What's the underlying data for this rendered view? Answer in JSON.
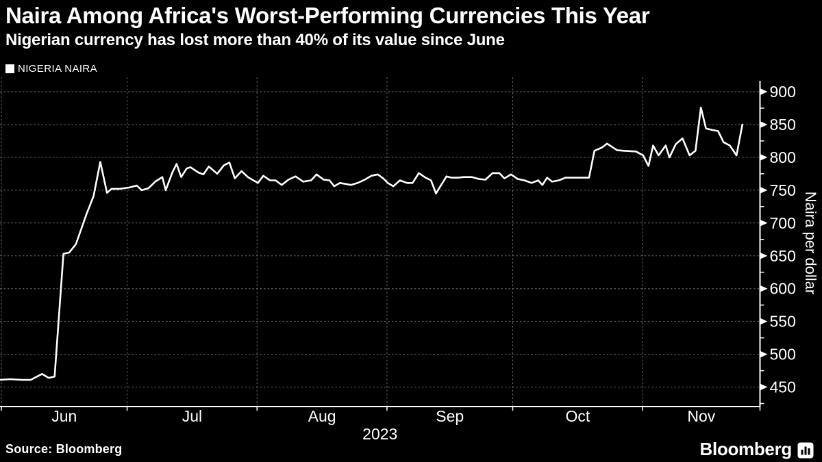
{
  "header": {
    "title": "Naira Among Africa's Worst-Performing Currencies This Year",
    "subtitle": "Nigerian currency has lost more than 40% of its value since June"
  },
  "legend": {
    "label": "NIGERIA NAIRA",
    "marker_color": "#ffffff"
  },
  "footer": {
    "source": "Source: Bloomberg",
    "brand": "Bloomberg"
  },
  "colors": {
    "background": "#000000",
    "line": "#ffffff",
    "grid": "#6e6e6e",
    "axis": "#ffffff",
    "text": "#ffffff"
  },
  "chart_data": {
    "type": "line",
    "title": "Naira Among Africa's Worst-Performing Currencies This Year",
    "subtitle": "Nigerian currency has lost more than 40% of its value since June",
    "legend_position": "top-left",
    "grid": "dashed",
    "x": {
      "unit": "days since Jun 1, 2023",
      "month_labels": [
        "Jun",
        "Jul",
        "Aug",
        "Sep",
        "Oct",
        "Nov"
      ],
      "month_start_days": [
        0,
        30,
        61,
        92,
        122,
        153
      ],
      "axis_end_day": 181,
      "year_label": "2023"
    },
    "y": {
      "label": "Naira per dollar",
      "side": "right",
      "ticks": [
        450,
        500,
        550,
        600,
        650,
        700,
        750,
        800,
        850,
        900
      ],
      "minor_ticks": [
        425,
        475,
        525,
        575,
        625,
        675,
        725,
        775,
        825,
        875
      ],
      "ylim": [
        417,
        920
      ]
    },
    "series": [
      {
        "name": "NIGERIA NAIRA",
        "unit": "naira per US dollar",
        "points": [
          [
            -0.4,
            461
          ],
          [
            2,
            462
          ],
          [
            5,
            461
          ],
          [
            7,
            461
          ],
          [
            8.5,
            466
          ],
          [
            9.7,
            470
          ],
          [
            11.3,
            464
          ],
          [
            12.7,
            466
          ],
          [
            14.8,
            653
          ],
          [
            16.2,
            655
          ],
          [
            17.8,
            668
          ],
          [
            20.4,
            715
          ],
          [
            22,
            741
          ],
          [
            23.6,
            793
          ],
          [
            25.2,
            746
          ],
          [
            26.3,
            752
          ],
          [
            28.2,
            752
          ],
          [
            30.5,
            754
          ],
          [
            32.3,
            757
          ],
          [
            33.5,
            750
          ],
          [
            35.1,
            753
          ],
          [
            36.7,
            763
          ],
          [
            38.4,
            770
          ],
          [
            39.2,
            750
          ],
          [
            40.8,
            777
          ],
          [
            41.8,
            790
          ],
          [
            42.9,
            770
          ],
          [
            44.2,
            783
          ],
          [
            45.1,
            785
          ],
          [
            47,
            777
          ],
          [
            48.2,
            774
          ],
          [
            49.5,
            786
          ],
          [
            51.5,
            775
          ],
          [
            53.1,
            788
          ],
          [
            54.4,
            792
          ],
          [
            55.7,
            768
          ],
          [
            57.3,
            779
          ],
          [
            58.8,
            770
          ],
          [
            61.2,
            761
          ],
          [
            62.5,
            772
          ],
          [
            64.1,
            765
          ],
          [
            65.4,
            765
          ],
          [
            66.9,
            758
          ],
          [
            68.5,
            766
          ],
          [
            70.2,
            771
          ],
          [
            72,
            763
          ],
          [
            73.9,
            765
          ],
          [
            75.2,
            774
          ],
          [
            76.9,
            766
          ],
          [
            78.3,
            765
          ],
          [
            79.4,
            756
          ],
          [
            80.8,
            761
          ],
          [
            83.4,
            758
          ],
          [
            85,
            761
          ],
          [
            86.7,
            766
          ],
          [
            88.3,
            772
          ],
          [
            89.8,
            774
          ],
          [
            91.1,
            768
          ],
          [
            92.2,
            761
          ],
          [
            93.5,
            756
          ],
          [
            95.1,
            765
          ],
          [
            96.8,
            761
          ],
          [
            98.1,
            761
          ],
          [
            99.6,
            776
          ],
          [
            101.2,
            769
          ],
          [
            102.5,
            765
          ],
          [
            103.7,
            745
          ],
          [
            106.2,
            771
          ],
          [
            107.4,
            769
          ],
          [
            109,
            769
          ],
          [
            110.3,
            770
          ],
          [
            112.3,
            770
          ],
          [
            113.9,
            767
          ],
          [
            115.5,
            766
          ],
          [
            117.2,
            776
          ],
          [
            118.8,
            776
          ],
          [
            120,
            768
          ],
          [
            121.6,
            774
          ],
          [
            123.2,
            767
          ],
          [
            124.8,
            765
          ],
          [
            126.5,
            761
          ],
          [
            128.1,
            765
          ],
          [
            129.1,
            758
          ],
          [
            130.2,
            769
          ],
          [
            131.4,
            763
          ],
          [
            133,
            765
          ],
          [
            134.6,
            769
          ],
          [
            136.3,
            769
          ],
          [
            138.4,
            769
          ],
          [
            140.2,
            769
          ],
          [
            141.5,
            810
          ],
          [
            143.3,
            815
          ],
          [
            144.5,
            821
          ],
          [
            145.7,
            816
          ],
          [
            146.9,
            811
          ],
          [
            148.5,
            810
          ],
          [
            151.4,
            809
          ],
          [
            153.1,
            803
          ],
          [
            154.4,
            787
          ],
          [
            155.5,
            818
          ],
          [
            156.8,
            803
          ],
          [
            158.5,
            818
          ],
          [
            159.4,
            800
          ],
          [
            160.9,
            820
          ],
          [
            162.5,
            829
          ],
          [
            164.2,
            803
          ],
          [
            165.6,
            810
          ],
          [
            166.9,
            876
          ],
          [
            168.1,
            844
          ],
          [
            169.4,
            842
          ],
          [
            171,
            840
          ],
          [
            172.3,
            823
          ],
          [
            173.8,
            818
          ],
          [
            175.4,
            803
          ],
          [
            176.8,
            850
          ]
        ]
      }
    ]
  }
}
